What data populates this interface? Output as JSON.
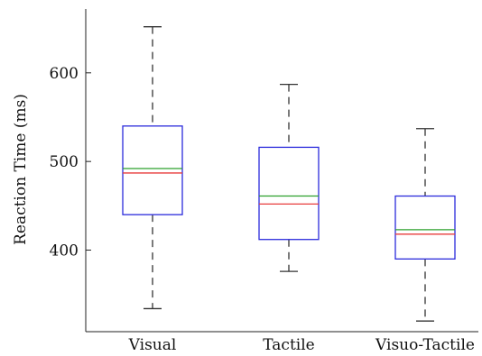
{
  "chart_data": {
    "type": "box",
    "ylabel": "Reaction Time (ms)",
    "xlabel": "",
    "ylim": [
      308,
      672
    ],
    "yticks": [
      400,
      500,
      600
    ],
    "ytick_labels": [
      "400",
      "500",
      "600"
    ],
    "grid": false,
    "categories": [
      "Visual",
      "Tactile",
      "Visuo-Tactile"
    ],
    "boxes": [
      {
        "category": "Visual",
        "whisker_low": 334,
        "q1": 440,
        "median": 487,
        "mean": 492,
        "q3": 540,
        "whisker_high": 652
      },
      {
        "category": "Tactile",
        "whisker_low": 376,
        "q1": 412,
        "median": 452,
        "mean": 461,
        "q3": 516,
        "whisker_high": 587
      },
      {
        "category": "Visuo-Tactile",
        "whisker_low": 320,
        "q1": 390,
        "median": 418,
        "mean": 423,
        "q3": 461,
        "whisker_high": 537
      }
    ]
  },
  "colors": {
    "box_edge": "#2b2bdc",
    "median": "#e83c3c",
    "mean": "#2ca02c",
    "whisker": "#333333",
    "axis": "#222222"
  }
}
